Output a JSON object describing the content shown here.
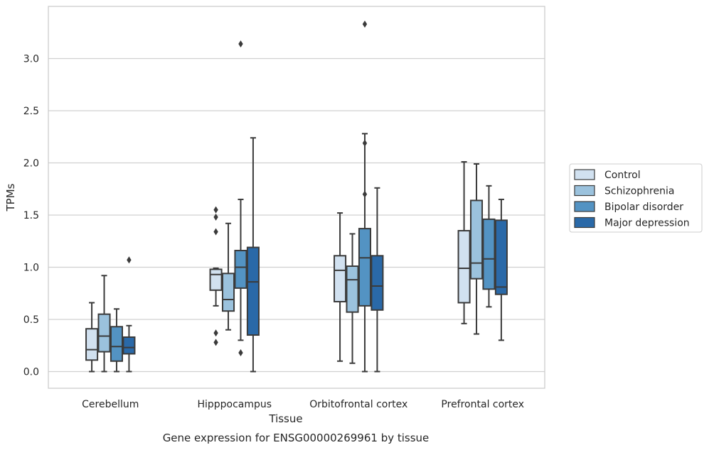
{
  "chart_data": {
    "type": "boxplot",
    "xlabel": "Tissue",
    "ylabel": "TPMs",
    "caption": "Gene expression for ENSG00000269961 by tissue",
    "ylim": [
      -0.16,
      3.5
    ],
    "yticks": [
      "0.0",
      "0.5",
      "1.0",
      "1.5",
      "2.0",
      "2.5",
      "3.0"
    ],
    "grid": "horizontal",
    "legend_position": "right",
    "categories": [
      "Cerebellum",
      "Hipppocampus",
      "Orbitofrontal cortex",
      "Prefrontal cortex"
    ],
    "series": [
      {
        "name": "Control",
        "color": "#d1e1f0",
        "boxes": [
          {
            "whisker_low": 0.0,
            "q1": 0.11,
            "median": 0.21,
            "q3": 0.41,
            "whisker_high": 0.66,
            "outliers": []
          },
          {
            "whisker_low": 0.63,
            "q1": 0.78,
            "median": 0.93,
            "q3": 0.98,
            "whisker_high": 0.99,
            "outliers": [
              1.55,
              1.48,
              1.34,
              0.37,
              0.28
            ]
          },
          {
            "whisker_low": 0.1,
            "q1": 0.67,
            "median": 0.97,
            "q3": 1.11,
            "whisker_high": 1.52,
            "outliers": []
          },
          {
            "whisker_low": 0.46,
            "q1": 0.66,
            "median": 0.99,
            "q3": 1.35,
            "whisker_high": 2.01,
            "outliers": []
          }
        ]
      },
      {
        "name": "Schizophrenia",
        "color": "#9bc2dd",
        "boxes": [
          {
            "whisker_low": 0.0,
            "q1": 0.19,
            "median": 0.34,
            "q3": 0.55,
            "whisker_high": 0.92,
            "outliers": []
          },
          {
            "whisker_low": 0.4,
            "q1": 0.58,
            "median": 0.69,
            "q3": 0.94,
            "whisker_high": 1.42,
            "outliers": []
          },
          {
            "whisker_low": 0.08,
            "q1": 0.57,
            "median": 0.88,
            "q3": 1.01,
            "whisker_high": 1.32,
            "outliers": []
          },
          {
            "whisker_low": 0.36,
            "q1": 0.89,
            "median": 1.04,
            "q3": 1.64,
            "whisker_high": 1.99,
            "outliers": []
          }
        ]
      },
      {
        "name": "Bipolar disorder",
        "color": "#5393c3",
        "boxes": [
          {
            "whisker_low": 0.0,
            "q1": 0.1,
            "median": 0.24,
            "q3": 0.43,
            "whisker_high": 0.6,
            "outliers": []
          },
          {
            "whisker_low": 0.3,
            "q1": 0.8,
            "median": 1.0,
            "q3": 1.16,
            "whisker_high": 1.65,
            "outliers": [
              3.14,
              0.18
            ]
          },
          {
            "whisker_low": 0.0,
            "q1": 0.63,
            "median": 1.09,
            "q3": 1.37,
            "whisker_high": 2.28,
            "outliers": [
              2.19,
              1.7,
              3.33
            ]
          },
          {
            "whisker_low": 0.62,
            "q1": 0.79,
            "median": 1.08,
            "q3": 1.46,
            "whisker_high": 1.78,
            "outliers": []
          }
        ]
      },
      {
        "name": "Major depression",
        "color": "#2a69a8",
        "boxes": [
          {
            "whisker_low": 0.0,
            "q1": 0.17,
            "median": 0.23,
            "q3": 0.33,
            "whisker_high": 0.44,
            "outliers": [
              1.07
            ]
          },
          {
            "whisker_low": 0.0,
            "q1": 0.35,
            "median": 0.86,
            "q3": 1.19,
            "whisker_high": 2.24,
            "outliers": []
          },
          {
            "whisker_low": 0.0,
            "q1": 0.59,
            "median": 0.82,
            "q3": 1.11,
            "whisker_high": 1.76,
            "outliers": []
          },
          {
            "whisker_low": 0.3,
            "q1": 0.74,
            "median": 0.81,
            "q3": 1.45,
            "whisker_high": 1.65,
            "outliers": []
          }
        ]
      }
    ]
  }
}
